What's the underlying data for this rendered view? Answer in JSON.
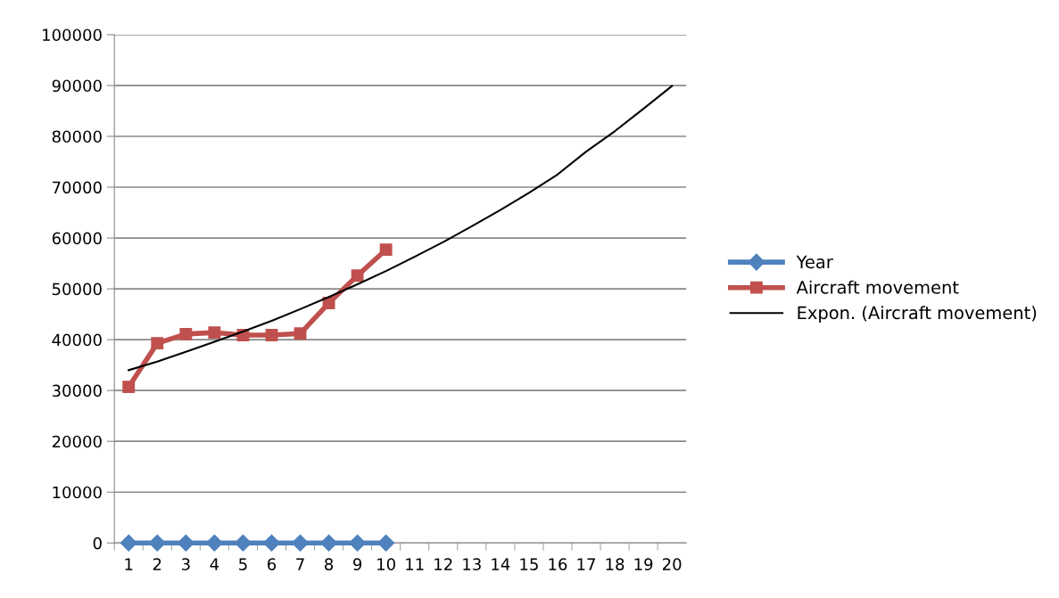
{
  "chart_data": {
    "type": "line",
    "categories": [
      "1",
      "2",
      "3",
      "4",
      "5",
      "6",
      "7",
      "8",
      "9",
      "10",
      "11",
      "12",
      "13",
      "14",
      "15",
      "16",
      "17",
      "18",
      "19",
      "20"
    ],
    "series": [
      {
        "name": "Year",
        "color": "#4f81bd",
        "marker": "diamond",
        "values": [
          0,
          0,
          0,
          0,
          0,
          0,
          0,
          0,
          0,
          0,
          null,
          null,
          null,
          null,
          null,
          null,
          null,
          null,
          null,
          null
        ]
      },
      {
        "name": "Aircraft movement",
        "color": "#c0504d",
        "marker": "square",
        "values": [
          30700,
          39300,
          41100,
          41400,
          40900,
          40900,
          41200,
          47200,
          52600,
          57700,
          null,
          null,
          null,
          null,
          null,
          null,
          null,
          null,
          null,
          null
        ]
      },
      {
        "name": "Expon. (Aircraft movement)",
        "color": "#000000",
        "marker": "none",
        "values": [
          34000,
          35700,
          37600,
          39600,
          41600,
          43700,
          46000,
          48400,
          50900,
          53500,
          56300,
          59200,
          62300,
          65500,
          68900,
          72500,
          77000,
          81000,
          85400,
          89900
        ]
      }
    ],
    "ylim": [
      0,
      100000
    ],
    "yticks": [
      0,
      10000,
      20000,
      30000,
      40000,
      50000,
      60000,
      70000,
      80000,
      90000,
      100000
    ],
    "grid": "y",
    "legend": "right"
  }
}
